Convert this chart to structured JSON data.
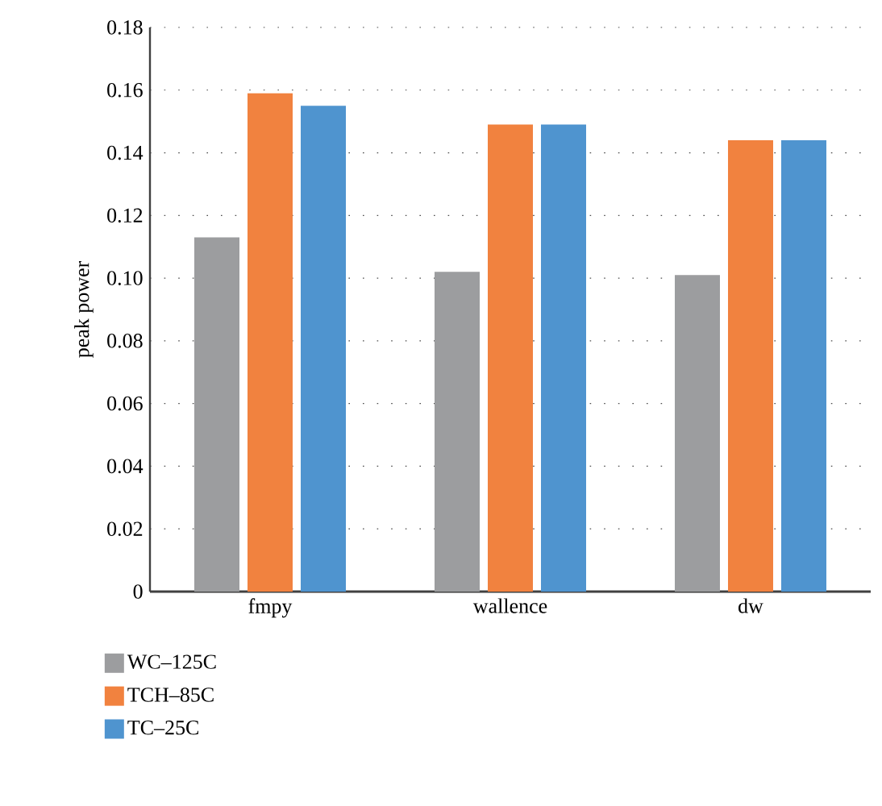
{
  "chart_data": {
    "type": "bar",
    "ylabel": "peak power",
    "categories": [
      "fmpy",
      "wallence",
      "dw"
    ],
    "series": [
      {
        "name": "WC–125C",
        "color": "#9c9d9f",
        "values": [
          0.113,
          0.102,
          0.101
        ]
      },
      {
        "name": "TCH–85C",
        "color": "#f1823f",
        "values": [
          0.159,
          0.149,
          0.144
        ]
      },
      {
        "name": "TC–25C",
        "color": "#4f94cf",
        "values": [
          0.155,
          0.149,
          0.144
        ]
      }
    ],
    "ylim": [
      0,
      0.18
    ],
    "yticks": [
      0,
      0.02,
      0.04,
      0.06,
      0.08,
      {
        "value": 0.1,
        "label": "0.10"
      },
      0.12,
      0.14,
      0.16,
      0.18
    ],
    "grid": "y",
    "legend": "bottom left"
  }
}
